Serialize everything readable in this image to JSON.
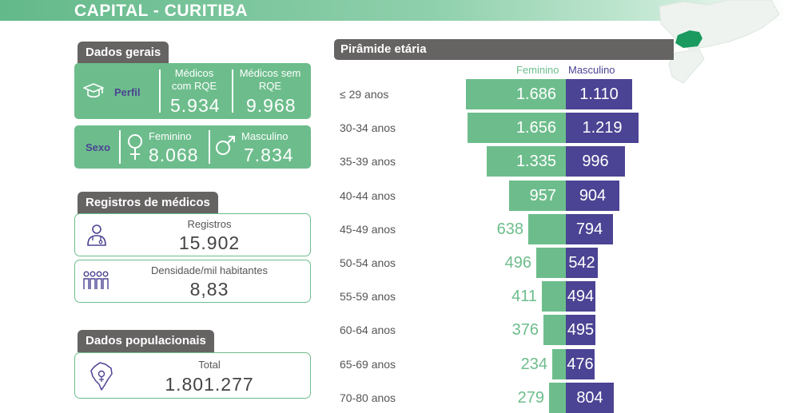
{
  "page": {
    "title": "CAPITAL - CURITIBA"
  },
  "dados_gerais": {
    "section_title": "Dados gerais",
    "perfil": {
      "label": "Perfil",
      "com_rqe_label": "Médicos com RQE",
      "com_rqe_value": "5.934",
      "sem_rqe_label": "Médicos sem RQE",
      "sem_rqe_value": "9.968"
    },
    "sexo": {
      "label": "Sexo",
      "feminino_label": "Feminino",
      "feminino_value": "8.068",
      "masculino_label": "Masculino",
      "masculino_value": "7.834"
    }
  },
  "registros": {
    "section_title": "Registros de médicos",
    "registros_label": "Registros",
    "registros_value": "15.902",
    "densidade_label": "Densidade/mil habitantes",
    "densidade_value": "8,83"
  },
  "populacionais": {
    "section_title": "Dados populacionais",
    "total_label": "Total",
    "total_value": "1.801.277"
  },
  "icons": {
    "perfil": "graduation-cap-icon",
    "feminino": "female-symbol-icon",
    "masculino": "male-symbol-icon",
    "registros": "doctor-icon",
    "densidade": "people-group-icon",
    "populacao": "brazil-map-icon",
    "map": "parana-map-icon"
  },
  "colors": {
    "feminino": "#6dbd8c",
    "masculino": "#4b4393",
    "header": "#666363"
  },
  "chart_data": {
    "type": "bar",
    "title": "Pirâmide etária",
    "orientation": "horizontal-pyramid",
    "categories": [
      "≤ 29 anos",
      "30-34 anos",
      "35-39 anos",
      "40-44 anos",
      "45-49 anos",
      "50-54 anos",
      "55-59 anos",
      "60-64 anos",
      "65-69 anos",
      "70-80 anos"
    ],
    "series": [
      {
        "name": "Feminino",
        "color": "#6dbd8c",
        "values": [
          1686,
          1656,
          1335,
          957,
          638,
          496,
          411,
          376,
          234,
          279
        ],
        "labels": [
          "1.686",
          "1.656",
          "1.335",
          "957",
          "638",
          "496",
          "411",
          "376",
          "234",
          "279"
        ]
      },
      {
        "name": "Masculino",
        "color": "#4b4393",
        "values": [
          1110,
          1219,
          996,
          904,
          794,
          542,
          494,
          495,
          476,
          804
        ],
        "labels": [
          "1.110",
          "1.219",
          "996",
          "904",
          "794",
          "542",
          "494",
          "495",
          "476",
          "804"
        ]
      }
    ]
  }
}
